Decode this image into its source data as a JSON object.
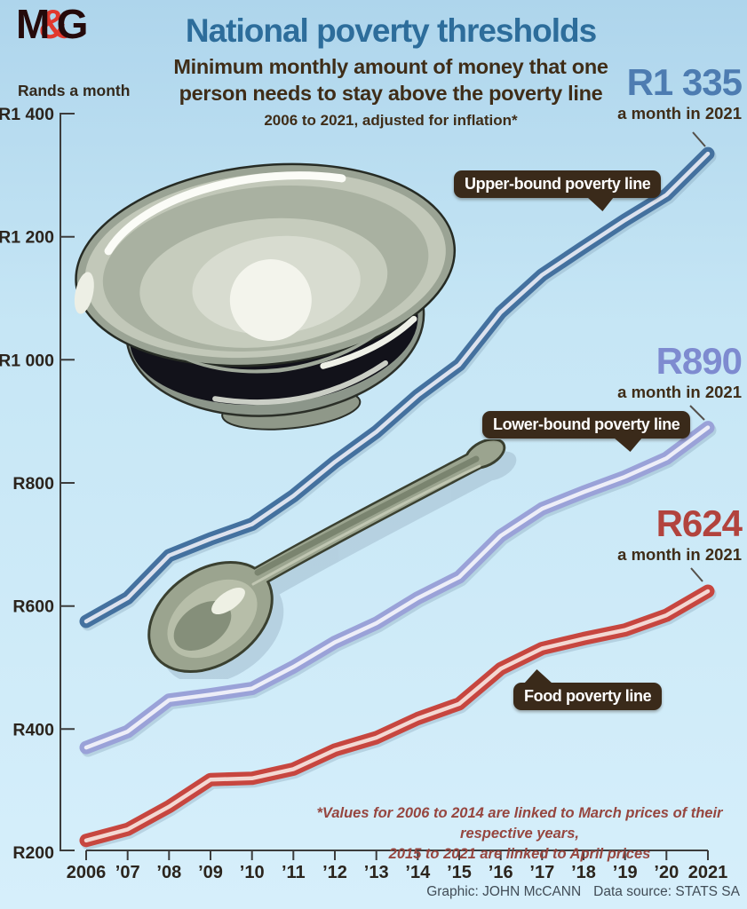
{
  "brand": {
    "m": "M",
    "amp": "&",
    "g": "G"
  },
  "header": {
    "title": "National poverty thresholds",
    "subtitle1": "Minimum monthly amount of money that one",
    "subtitle2": "person needs to stay above the poverty line",
    "period": "2006 to 2021, adjusted for inflation*"
  },
  "annotations": {
    "upper": {
      "value": "R1 335",
      "caption": "a month in 2021",
      "box_label": "Upper-bound poverty line"
    },
    "lower": {
      "value": "R890",
      "caption": "a month in 2021",
      "box_label": "Lower-bound poverty line"
    },
    "food": {
      "value": "R624",
      "caption": "a month in 2021",
      "box_label": "Food poverty line"
    }
  },
  "footnote": {
    "line1": "*Values for 2006 to 2014 are linked to March prices of their respective years,",
    "line2": "2015 to 2021 are linked to April prices"
  },
  "credits": {
    "graphic": "Graphic: JOHN McCANN",
    "source": "Data source: STATS SA"
  },
  "colors": {
    "title": "#2d6d9b",
    "brown_text": "#3f2d18",
    "upper_value": "#4d7cb1",
    "lower_value": "#7e8bd0",
    "food_value": "#b2433d",
    "label_box": "#3a2a1a",
    "footnote": "#96463f",
    "logo_red": "#e1392e"
  },
  "chart_data": {
    "type": "line",
    "title": "National poverty thresholds",
    "ylabel": "Rands a month",
    "ylim": [
      200,
      1400
    ],
    "grid": false,
    "y_tick_values": [
      1400,
      1200,
      1000,
      800,
      600,
      400,
      200
    ],
    "y_tick_labels": [
      "R1 400",
      "R1 200",
      "R1 000",
      "R800",
      "R600",
      "R400",
      "R200"
    ],
    "x": [
      2006,
      2007,
      2008,
      2009,
      2010,
      2011,
      2012,
      2013,
      2014,
      2015,
      2016,
      2017,
      2018,
      2019,
      2020,
      2021
    ],
    "x_tick_labels": [
      "2006",
      "’07",
      "’08",
      "’09",
      "’10",
      "’11",
      "’12",
      "’13",
      "’14",
      "’15",
      "’16",
      "’17",
      "’18",
      "’19",
      "’20",
      "2021"
    ],
    "series": [
      {
        "name": "Upper-bound poverty line",
        "color": "#44719f",
        "stripe": "#dce2ee",
        "end_label": "R1 335",
        "values": [
          575,
          613,
          682,
          709,
          733,
          779,
          834,
          883,
          942,
          992,
          1077,
          1138,
          1183,
          1227,
          1268,
          1335
        ]
      },
      {
        "name": "Lower-bound poverty line",
        "color": "#9aa2d8",
        "stripe": "#edeef8",
        "end_label": "R890",
        "values": [
          370,
          396,
          447,
          456,
          466,
          501,
          541,
          572,
          613,
          647,
          714,
          758,
          785,
          810,
          840,
          890
        ]
      },
      {
        "name": "Food poverty line",
        "color": "#c7463f",
        "stripe": "#f3d8d3",
        "end_label": "R624",
        "values": [
          219,
          237,
          274,
          318,
          320,
          335,
          366,
          386,
          417,
          441,
          498,
          531,
          547,
          561,
          585,
          624
        ]
      }
    ]
  }
}
